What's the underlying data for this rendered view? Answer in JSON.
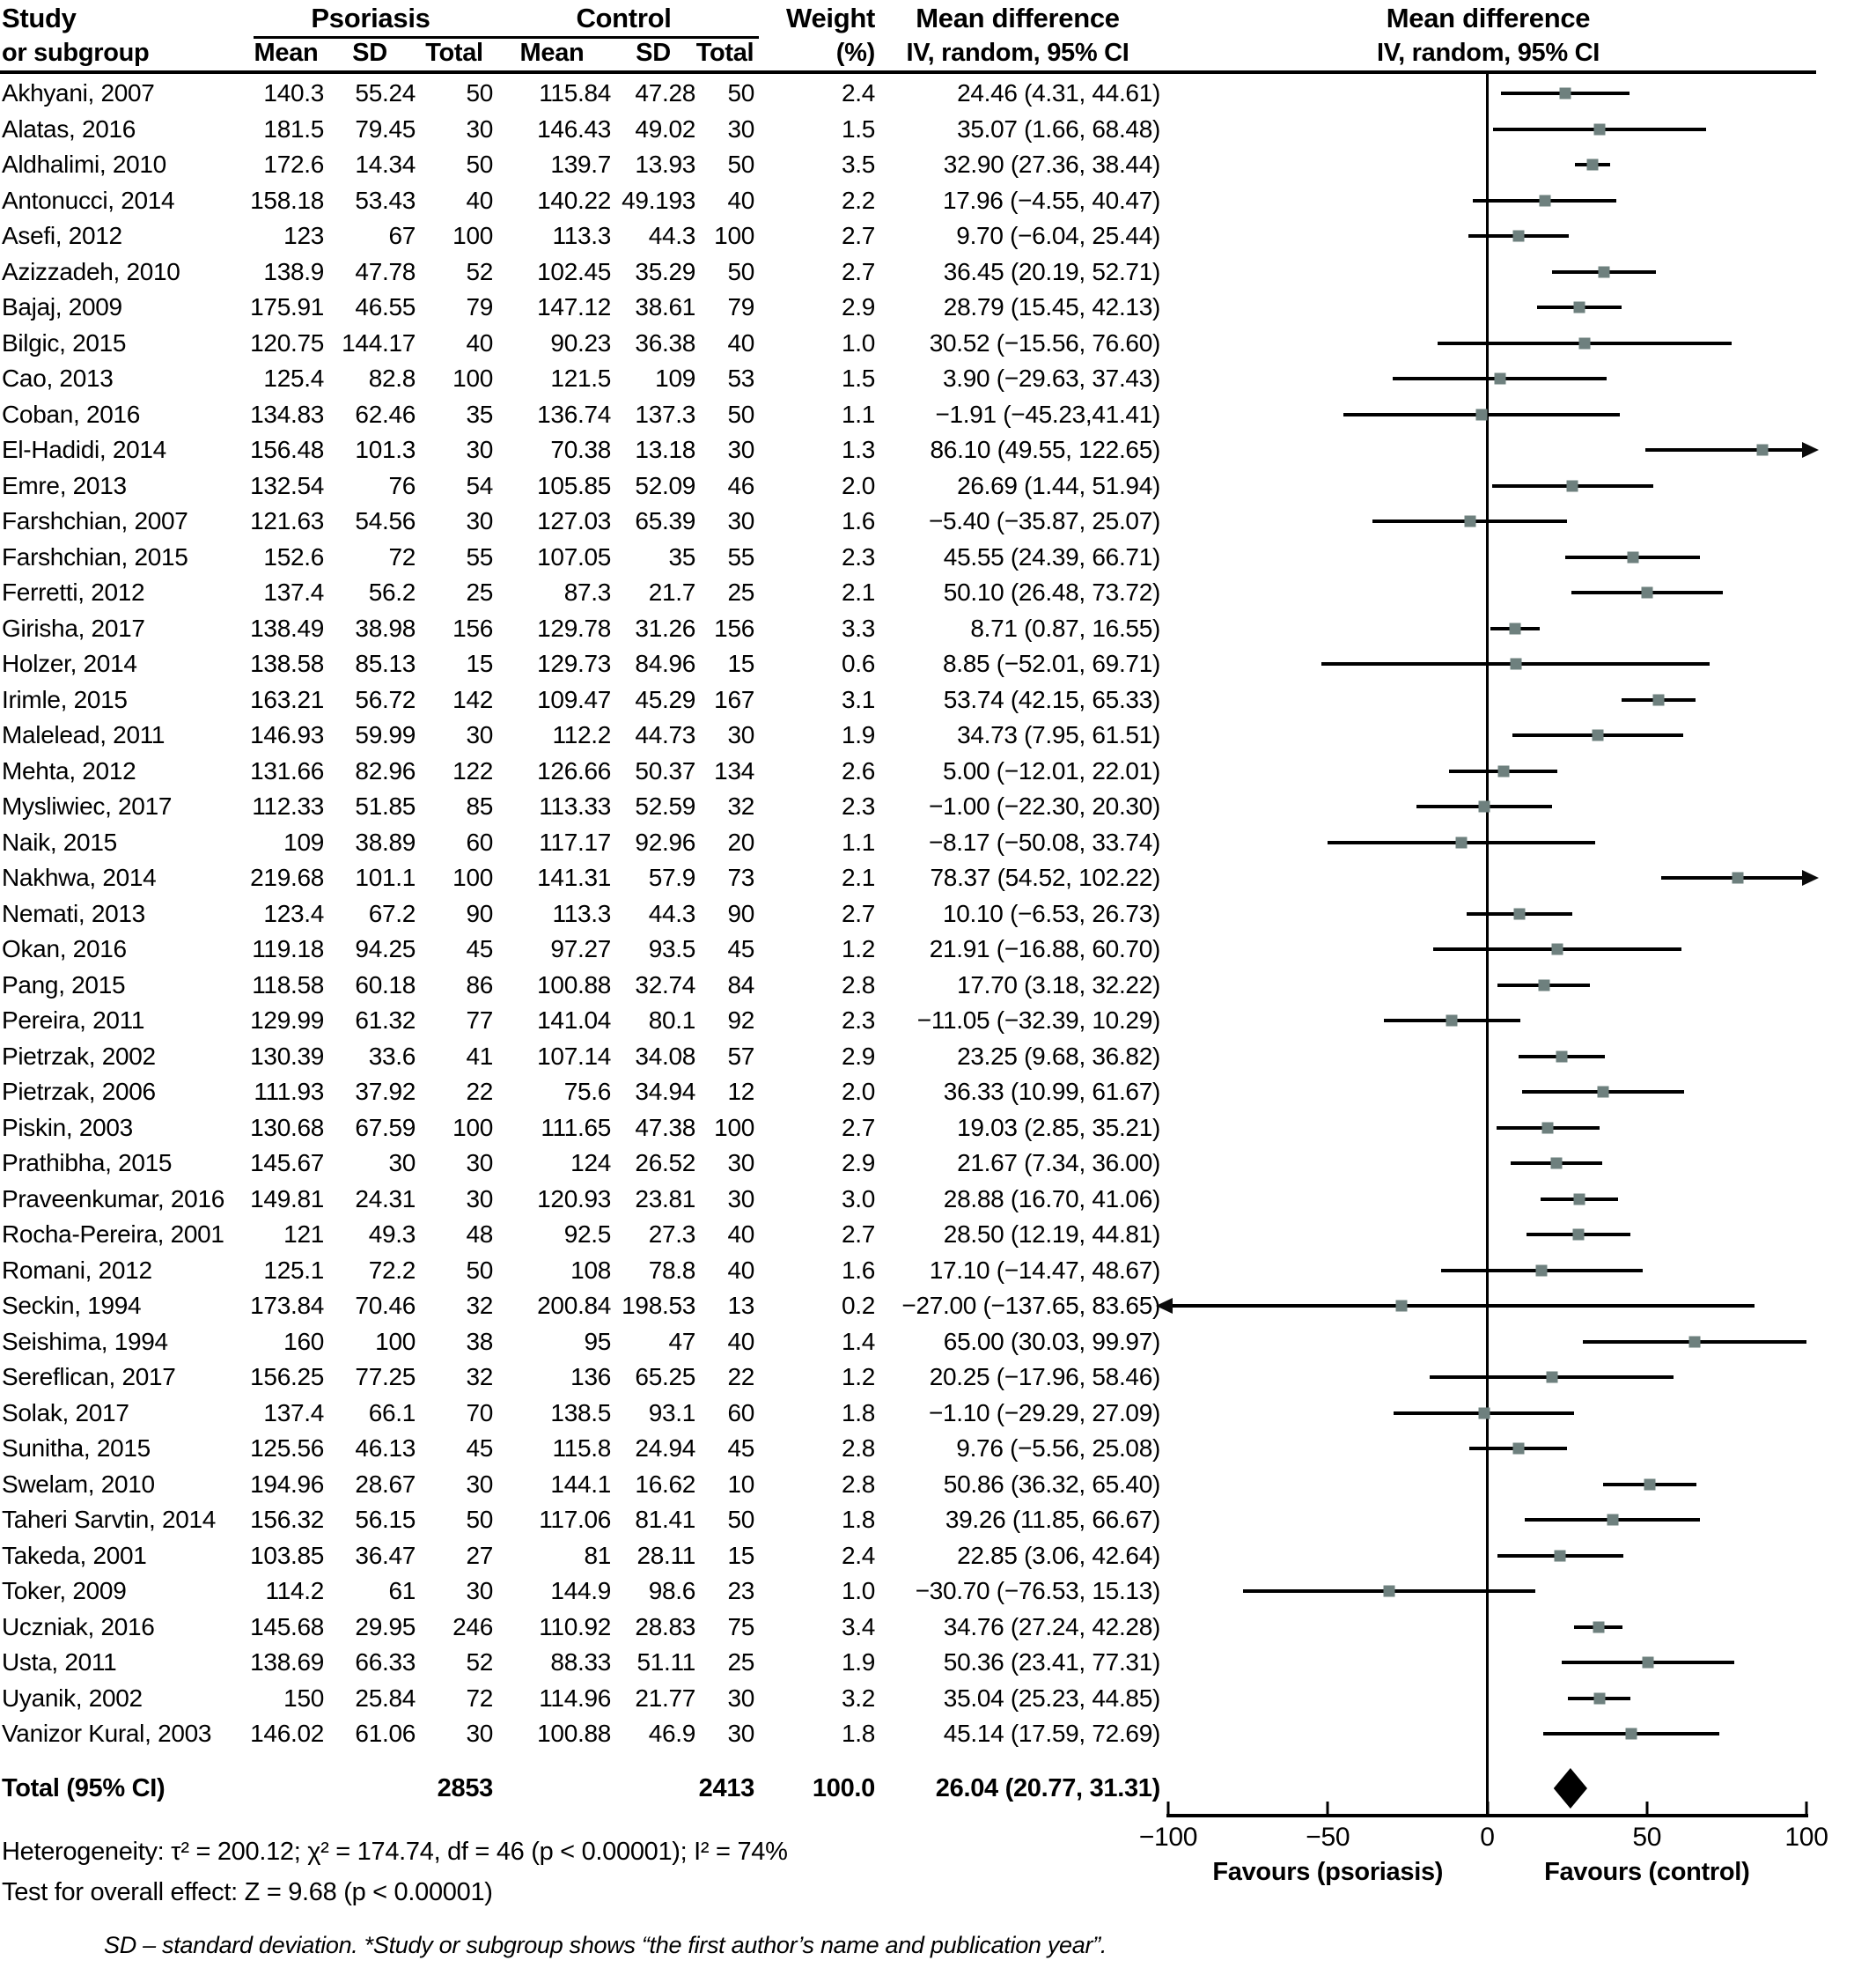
{
  "header": {
    "col1_line1": "Study",
    "col1_line2": "or subgroup",
    "group1": "Psoriasis",
    "group2": "Control",
    "sub_cols": [
      "Mean",
      "SD",
      "Total"
    ],
    "weight_line1": "Weight",
    "weight_line2": "(%)",
    "md_line1": "Mean difference",
    "md_line2": "IV, random, 95% CI",
    "plot_line1": "Mean difference",
    "plot_line2": "IV, random, 95% CI"
  },
  "chart_data": {
    "type": "forest",
    "axis": {
      "min": -100,
      "max": 100,
      "ticks": [
        -100,
        -50,
        0,
        50,
        100
      ],
      "label_left": "Favours (psoriasis)",
      "label_right": "Favours (control)"
    },
    "studies": [
      {
        "name": "Akhyani, 2007",
        "pm": "140.3",
        "psd": "55.24",
        "pn": "50",
        "cm": "115.84",
        "csd": "47.28",
        "cn": "50",
        "w": "2.4",
        "text": "24.46 (4.31, 44.61)",
        "md": 24.46,
        "lo": 4.31,
        "hi": 44.61
      },
      {
        "name": "Alatas, 2016",
        "pm": "181.5",
        "psd": "79.45",
        "pn": "30",
        "cm": "146.43",
        "csd": "49.02",
        "cn": "30",
        "w": "1.5",
        "text": "35.07 (1.66, 68.48)",
        "md": 35.07,
        "lo": 1.66,
        "hi": 68.48
      },
      {
        "name": "Aldhalimi, 2010",
        "pm": "172.6",
        "psd": "14.34",
        "pn": "50",
        "cm": "139.7",
        "csd": "13.93",
        "cn": "50",
        "w": "3.5",
        "text": "32.90 (27.36, 38.44)",
        "md": 32.9,
        "lo": 27.36,
        "hi": 38.44
      },
      {
        "name": "Antonucci, 2014",
        "pm": "158.18",
        "psd": "53.43",
        "pn": "40",
        "cm": "140.22",
        "csd": "49.193",
        "cn": "40",
        "w": "2.2",
        "text": "17.96 (−4.55, 40.47)",
        "md": 17.96,
        "lo": -4.55,
        "hi": 40.47
      },
      {
        "name": "Asefi, 2012",
        "pm": "123",
        "psd": "67",
        "pn": "100",
        "cm": "113.3",
        "csd": "44.3",
        "cn": "100",
        "w": "2.7",
        "text": "9.70 (−6.04, 25.44)",
        "md": 9.7,
        "lo": -6.04,
        "hi": 25.44
      },
      {
        "name": "Azizzadeh, 2010",
        "pm": "138.9",
        "psd": "47.78",
        "pn": "52",
        "cm": "102.45",
        "csd": "35.29",
        "cn": "50",
        "w": "2.7",
        "text": "36.45 (20.19, 52.71)",
        "md": 36.45,
        "lo": 20.19,
        "hi": 52.71
      },
      {
        "name": "Bajaj, 2009",
        "pm": "175.91",
        "psd": "46.55",
        "pn": "79",
        "cm": "147.12",
        "csd": "38.61",
        "cn": "79",
        "w": "2.9",
        "text": "28.79 (15.45, 42.13)",
        "md": 28.79,
        "lo": 15.45,
        "hi": 42.13
      },
      {
        "name": "Bilgic, 2015",
        "pm": "120.75",
        "psd": "144.17",
        "pn": "40",
        "cm": "90.23",
        "csd": "36.38",
        "cn": "40",
        "w": "1.0",
        "text": "30.52 (−15.56, 76.60)",
        "md": 30.52,
        "lo": -15.56,
        "hi": 76.6
      },
      {
        "name": "Cao, 2013",
        "pm": "125.4",
        "psd": "82.8",
        "pn": "100",
        "cm": "121.5",
        "csd": "109",
        "cn": "53",
        "w": "1.5",
        "text": "3.90 (−29.63, 37.43)",
        "md": 3.9,
        "lo": -29.63,
        "hi": 37.43
      },
      {
        "name": "Coban, 2016",
        "pm": "134.83",
        "psd": "62.46",
        "pn": "35",
        "cm": "136.74",
        "csd": "137.3",
        "cn": "50",
        "w": "1.1",
        "text": "−1.91 (−45.23,41.41)",
        "md": -1.91,
        "lo": -45.23,
        "hi": 41.41
      },
      {
        "name": "El-Hadidi, 2014",
        "pm": "156.48",
        "psd": "101.3",
        "pn": "30",
        "cm": "70.38",
        "csd": "13.18",
        "cn": "30",
        "w": "1.3",
        "text": "86.10 (49.55, 122.65)",
        "md": 86.1,
        "lo": 49.55,
        "hi": 122.65
      },
      {
        "name": "Emre, 2013",
        "pm": "132.54",
        "psd": "76",
        "pn": "54",
        "cm": "105.85",
        "csd": "52.09",
        "cn": "46",
        "w": "2.0",
        "text": "26.69 (1.44, 51.94)",
        "md": 26.69,
        "lo": 1.44,
        "hi": 51.94
      },
      {
        "name": "Farshchian, 2007",
        "pm": "121.63",
        "psd": "54.56",
        "pn": "30",
        "cm": "127.03",
        "csd": "65.39",
        "cn": "30",
        "w": "1.6",
        "text": "−5.40 (−35.87, 25.07)",
        "md": -5.4,
        "lo": -35.87,
        "hi": 25.07
      },
      {
        "name": "Farshchian, 2015",
        "pm": "152.6",
        "psd": "72",
        "pn": "55",
        "cm": "107.05",
        "csd": "35",
        "cn": "55",
        "w": "2.3",
        "text": "45.55 (24.39, 66.71)",
        "md": 45.55,
        "lo": 24.39,
        "hi": 66.71
      },
      {
        "name": "Ferretti, 2012",
        "pm": "137.4",
        "psd": "56.2",
        "pn": "25",
        "cm": "87.3",
        "csd": "21.7",
        "cn": "25",
        "w": "2.1",
        "text": "50.10 (26.48, 73.72)",
        "md": 50.1,
        "lo": 26.48,
        "hi": 73.72
      },
      {
        "name": "Girisha, 2017",
        "pm": "138.49",
        "psd": "38.98",
        "pn": "156",
        "cm": "129.78",
        "csd": "31.26",
        "cn": "156",
        "w": "3.3",
        "text": "8.71 (0.87, 16.55)",
        "md": 8.71,
        "lo": 0.87,
        "hi": 16.55
      },
      {
        "name": "Holzer, 2014",
        "pm": "138.58",
        "psd": "85.13",
        "pn": "15",
        "cm": "129.73",
        "csd": "84.96",
        "cn": "15",
        "w": "0.6",
        "text": "8.85 (−52.01, 69.71)",
        "md": 8.85,
        "lo": -52.01,
        "hi": 69.71
      },
      {
        "name": "Irimle, 2015",
        "pm": "163.21",
        "psd": "56.72",
        "pn": "142",
        "cm": "109.47",
        "csd": "45.29",
        "cn": "167",
        "w": "3.1",
        "text": "53.74 (42.15, 65.33)",
        "md": 53.74,
        "lo": 42.15,
        "hi": 65.33
      },
      {
        "name": "Malelead, 2011",
        "pm": "146.93",
        "psd": "59.99",
        "pn": "30",
        "cm": "112.2",
        "csd": "44.73",
        "cn": "30",
        "w": "1.9",
        "text": "34.73 (7.95, 61.51)",
        "md": 34.73,
        "lo": 7.95,
        "hi": 61.51
      },
      {
        "name": "Mehta, 2012",
        "pm": "131.66",
        "psd": "82.96",
        "pn": "122",
        "cm": "126.66",
        "csd": "50.37",
        "cn": "134",
        "w": "2.6",
        "text": "5.00 (−12.01, 22.01)",
        "md": 5.0,
        "lo": -12.01,
        "hi": 22.01
      },
      {
        "name": "Mysliwiec, 2017",
        "pm": "112.33",
        "psd": "51.85",
        "pn": "85",
        "cm": "113.33",
        "csd": "52.59",
        "cn": "32",
        "w": "2.3",
        "text": "−1.00 (−22.30, 20.30)",
        "md": -1.0,
        "lo": -22.3,
        "hi": 20.3
      },
      {
        "name": "Naik, 2015",
        "pm": "109",
        "psd": "38.89",
        "pn": "60",
        "cm": "117.17",
        "csd": "92.96",
        "cn": "20",
        "w": "1.1",
        "text": "−8.17 (−50.08, 33.74)",
        "md": -8.17,
        "lo": -50.08,
        "hi": 33.74
      },
      {
        "name": "Nakhwa, 2014",
        "pm": "219.68",
        "psd": "101.1",
        "pn": "100",
        "cm": "141.31",
        "csd": "57.9",
        "cn": "73",
        "w": "2.1",
        "text": "78.37 (54.52, 102.22)",
        "md": 78.37,
        "lo": 54.52,
        "hi": 102.22
      },
      {
        "name": "Nemati, 2013",
        "pm": "123.4",
        "psd": "67.2",
        "pn": "90",
        "cm": "113.3",
        "csd": "44.3",
        "cn": "90",
        "w": "2.7",
        "text": "10.10 (−6.53, 26.73)",
        "md": 10.1,
        "lo": -6.53,
        "hi": 26.73
      },
      {
        "name": "Okan, 2016",
        "pm": "119.18",
        "psd": "94.25",
        "pn": "45",
        "cm": "97.27",
        "csd": "93.5",
        "cn": "45",
        "w": "1.2",
        "text": "21.91 (−16.88, 60.70)",
        "md": 21.91,
        "lo": -16.88,
        "hi": 60.7
      },
      {
        "name": "Pang, 2015",
        "pm": "118.58",
        "psd": "60.18",
        "pn": "86",
        "cm": "100.88",
        "csd": "32.74",
        "cn": "84",
        "w": "2.8",
        "text": "17.70 (3.18, 32.22)",
        "md": 17.7,
        "lo": 3.18,
        "hi": 32.22
      },
      {
        "name": "Pereira, 2011",
        "pm": "129.99",
        "psd": "61.32",
        "pn": "77",
        "cm": "141.04",
        "csd": "80.1",
        "cn": "92",
        "w": "2.3",
        "text": "−11.05 (−32.39, 10.29)",
        "md": -11.05,
        "lo": -32.39,
        "hi": 10.29
      },
      {
        "name": "Pietrzak, 2002",
        "pm": "130.39",
        "psd": "33.6",
        "pn": "41",
        "cm": "107.14",
        "csd": "34.08",
        "cn": "57",
        "w": "2.9",
        "text": "23.25 (9.68, 36.82)",
        "md": 23.25,
        "lo": 9.68,
        "hi": 36.82
      },
      {
        "name": "Pietrzak, 2006",
        "pm": "111.93",
        "psd": "37.92",
        "pn": "22",
        "cm": "75.6",
        "csd": "34.94",
        "cn": "12",
        "w": "2.0",
        "text": "36.33 (10.99, 61.67)",
        "md": 36.33,
        "lo": 10.99,
        "hi": 61.67
      },
      {
        "name": "Piskin, 2003",
        "pm": "130.68",
        "psd": "67.59",
        "pn": "100",
        "cm": "111.65",
        "csd": "47.38",
        "cn": "100",
        "w": "2.7",
        "text": "19.03 (2.85, 35.21)",
        "md": 19.03,
        "lo": 2.85,
        "hi": 35.21
      },
      {
        "name": "Prathibha, 2015",
        "pm": "145.67",
        "psd": "30",
        "pn": "30",
        "cm": "124",
        "csd": "26.52",
        "cn": "30",
        "w": "2.9",
        "text": "21.67 (7.34, 36.00)",
        "md": 21.67,
        "lo": 7.34,
        "hi": 36.0
      },
      {
        "name": "Praveenkumar, 2016",
        "pm": "149.81",
        "psd": "24.31",
        "pn": "30",
        "cm": "120.93",
        "csd": "23.81",
        "cn": "30",
        "w": "3.0",
        "text": "28.88 (16.70, 41.06)",
        "md": 28.88,
        "lo": 16.7,
        "hi": 41.06
      },
      {
        "name": "Rocha-Pereira, 2001",
        "pm": "121",
        "psd": "49.3",
        "pn": "48",
        "cm": "92.5",
        "csd": "27.3",
        "cn": "40",
        "w": "2.7",
        "text": "28.50 (12.19, 44.81)",
        "md": 28.5,
        "lo": 12.19,
        "hi": 44.81
      },
      {
        "name": "Romani, 2012",
        "pm": "125.1",
        "psd": "72.2",
        "pn": "50",
        "cm": "108",
        "csd": "78.8",
        "cn": "40",
        "w": "1.6",
        "text": "17.10 (−14.47, 48.67)",
        "md": 17.1,
        "lo": -14.47,
        "hi": 48.67
      },
      {
        "name": "Seckin, 1994",
        "pm": "173.84",
        "psd": "70.46",
        "pn": "32",
        "cm": "200.84",
        "csd": "198.53",
        "cn": "13",
        "w": "0.2",
        "text": "−27.00 (−137.65, 83.65)",
        "md": -27.0,
        "lo": -137.65,
        "hi": 83.65
      },
      {
        "name": "Seishima, 1994",
        "pm": "160",
        "psd": "100",
        "pn": "38",
        "cm": "95",
        "csd": "47",
        "cn": "40",
        "w": "1.4",
        "text": "65.00 (30.03, 99.97)",
        "md": 65.0,
        "lo": 30.03,
        "hi": 99.97
      },
      {
        "name": "Sereflican, 2017",
        "pm": "156.25",
        "psd": "77.25",
        "pn": "32",
        "cm": "136",
        "csd": "65.25",
        "cn": "22",
        "w": "1.2",
        "text": "20.25 (−17.96, 58.46)",
        "md": 20.25,
        "lo": -17.96,
        "hi": 58.46
      },
      {
        "name": "Solak, 2017",
        "pm": "137.4",
        "psd": "66.1",
        "pn": "70",
        "cm": "138.5",
        "csd": "93.1",
        "cn": "60",
        "w": "1.8",
        "text": "−1.10 (−29.29, 27.09)",
        "md": -1.1,
        "lo": -29.29,
        "hi": 27.09
      },
      {
        "name": "Sunitha, 2015",
        "pm": "125.56",
        "psd": "46.13",
        "pn": "45",
        "cm": "115.8",
        "csd": "24.94",
        "cn": "45",
        "w": "2.8",
        "text": "9.76 (−5.56, 25.08)",
        "md": 9.76,
        "lo": -5.56,
        "hi": 25.08
      },
      {
        "name": "Swelam, 2010",
        "pm": "194.96",
        "psd": "28.67",
        "pn": "30",
        "cm": "144.1",
        "csd": "16.62",
        "cn": "10",
        "w": "2.8",
        "text": "50.86 (36.32, 65.40)",
        "md": 50.86,
        "lo": 36.32,
        "hi": 65.4
      },
      {
        "name": "Taheri Sarvtin, 2014",
        "pm": "156.32",
        "psd": "56.15",
        "pn": "50",
        "cm": "117.06",
        "csd": "81.41",
        "cn": "50",
        "w": "1.8",
        "text": "39.26 (11.85, 66.67)",
        "md": 39.26,
        "lo": 11.85,
        "hi": 66.67
      },
      {
        "name": "Takeda, 2001",
        "pm": "103.85",
        "psd": "36.47",
        "pn": "27",
        "cm": "81",
        "csd": "28.11",
        "cn": "15",
        "w": "2.4",
        "text": "22.85 (3.06, 42.64)",
        "md": 22.85,
        "lo": 3.06,
        "hi": 42.64
      },
      {
        "name": "Toker, 2009",
        "pm": "114.2",
        "psd": "61",
        "pn": "30",
        "cm": "144.9",
        "csd": "98.6",
        "cn": "23",
        "w": "1.0",
        "text": "−30.70 (−76.53, 15.13)",
        "md": -30.7,
        "lo": -76.53,
        "hi": 15.13
      },
      {
        "name": "Uczniak, 2016",
        "pm": "145.68",
        "psd": "29.95",
        "pn": "246",
        "cm": "110.92",
        "csd": "28.83",
        "cn": "75",
        "w": "3.4",
        "text": "34.76 (27.24, 42.28)",
        "md": 34.76,
        "lo": 27.24,
        "hi": 42.28
      },
      {
        "name": "Usta, 2011",
        "pm": "138.69",
        "psd": "66.33",
        "pn": "52",
        "cm": "88.33",
        "csd": "51.11",
        "cn": "25",
        "w": "1.9",
        "text": "50.36 (23.41, 77.31)",
        "md": 50.36,
        "lo": 23.41,
        "hi": 77.31
      },
      {
        "name": "Uyanik, 2002",
        "pm": "150",
        "psd": "25.84",
        "pn": "72",
        "cm": "114.96",
        "csd": "21.77",
        "cn": "30",
        "w": "3.2",
        "text": "35.04 (25.23, 44.85)",
        "md": 35.04,
        "lo": 25.23,
        "hi": 44.85
      },
      {
        "name": "Vanizor Kural, 2003",
        "pm": "146.02",
        "psd": "61.06",
        "pn": "30",
        "cm": "100.88",
        "csd": "46.9",
        "cn": "30",
        "w": "1.8",
        "text": "45.14 (17.59, 72.69)",
        "md": 45.14,
        "lo": 17.59,
        "hi": 72.69
      }
    ],
    "total": {
      "label": "Total (95% CI)",
      "pn": "2853",
      "cn": "2413",
      "w": "100.0",
      "text": "26.04 (20.77, 31.31)",
      "md": 26.04,
      "lo": 20.77,
      "hi": 31.31
    }
  },
  "stats": {
    "heterogeneity": "Heterogeneity: τ² = 200.12; χ² = 174.74, df = 46 (p < 0.00001); I² = 74%",
    "overall": "Test for overall effect: Z = 9.68 (p < 0.00001)"
  },
  "footnote": "SD – standard deviation. *Study or subgroup shows “the first author’s name and publication year”.",
  "colors": {
    "marker": "#6e807e",
    "line": "#000000"
  }
}
